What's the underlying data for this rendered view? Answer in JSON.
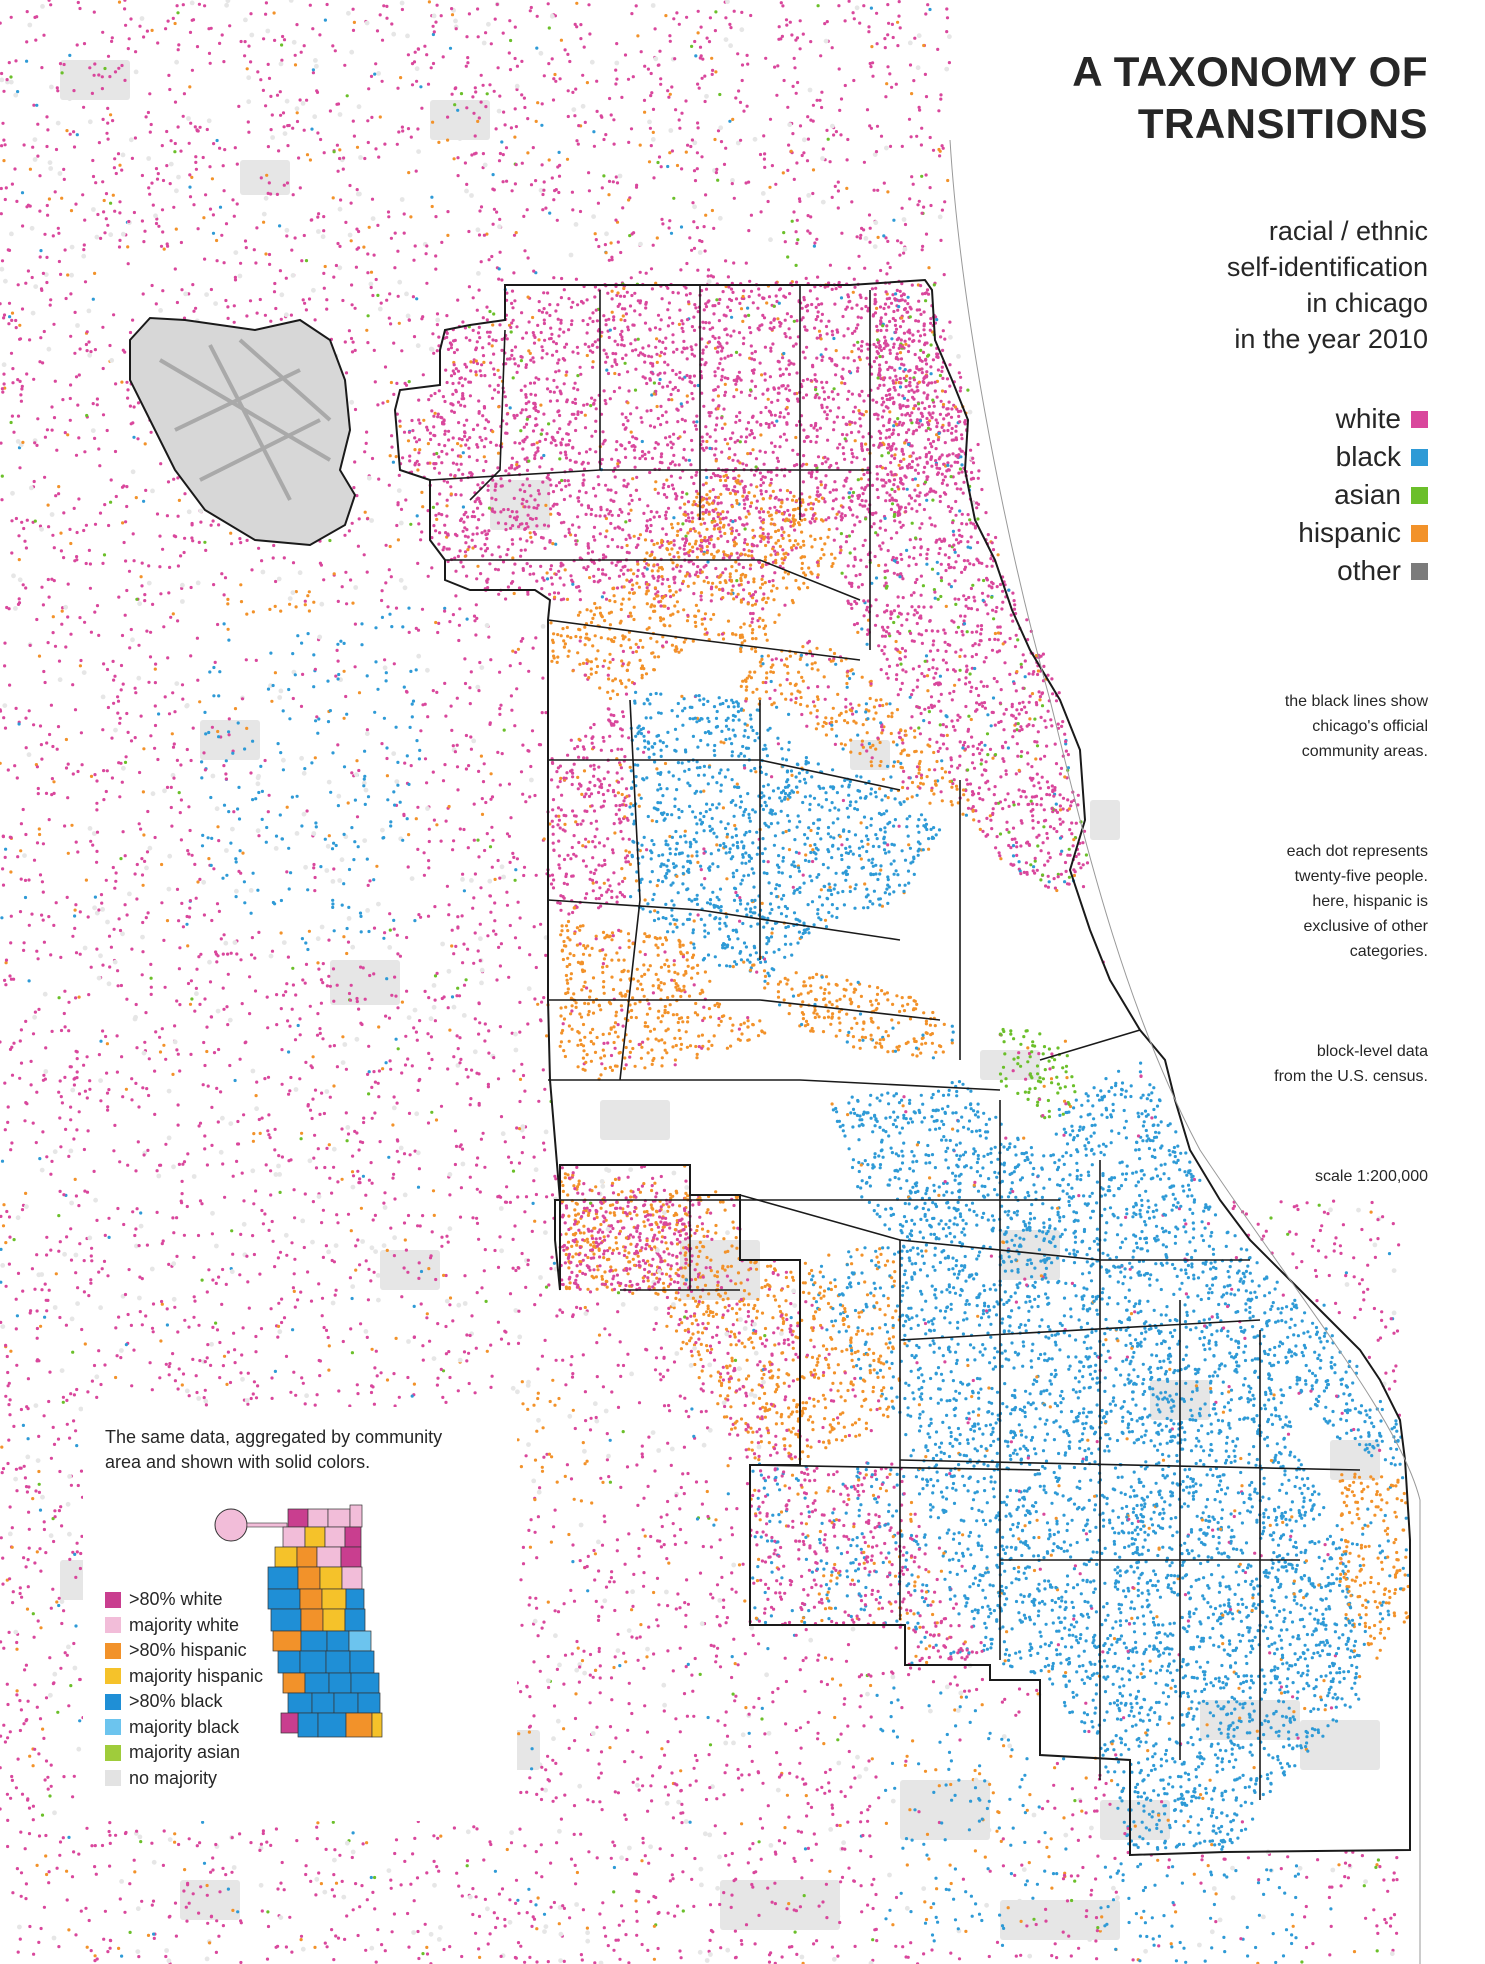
{
  "title": {
    "line1": "A TAXONOMY OF",
    "line2": "TRANSITIONS"
  },
  "subtitle": {
    "line1": "racial / ethnic",
    "line2": "self-identification",
    "line3": "in chicago",
    "line4": "in the year 2010"
  },
  "legend": [
    {
      "label": "white",
      "color": "#d9479c"
    },
    {
      "label": "black",
      "color": "#2e9ad6"
    },
    {
      "label": "asian",
      "color": "#6bbf2a"
    },
    {
      "label": "hispanic",
      "color": "#f2922a"
    },
    {
      "label": "other",
      "color": "#7b7b7b"
    }
  ],
  "notes": {
    "p1": [
      "the black lines show",
      "chicago's official",
      "community areas."
    ],
    "p2": [
      "each dot represents",
      "twenty-five people.",
      "here, hispanic is",
      "exclusive of other",
      "categories."
    ],
    "p3": [
      "block-level data",
      "from the U.S. census."
    ],
    "p4": [
      "scale 1:200,000"
    ]
  },
  "inset": {
    "caption_line1": "The same data, aggregated by community",
    "caption_line2": "area and shown with solid colors.",
    "legend": [
      {
        "label": ">80% white",
        "color": "#c93e8f"
      },
      {
        "label": "majority white",
        "color": "#f2bdd9"
      },
      {
        "label": ">80% hispanic",
        "color": "#f2922a"
      },
      {
        "label": "majority hispanic",
        "color": "#f5c22a"
      },
      {
        "label": ">80% black",
        "color": "#1f8fd6"
      },
      {
        "label": "majority black",
        "color": "#6cc4ee"
      },
      {
        "label": "majority asian",
        "color": "#9fcc3b"
      },
      {
        "label": "no majority",
        "color": "#e3e3e3"
      }
    ]
  },
  "colors": {
    "background": "#ffffff",
    "land_gray": "#e6e6e6",
    "boundary": "#1a1a1a",
    "text": "#262626"
  }
}
